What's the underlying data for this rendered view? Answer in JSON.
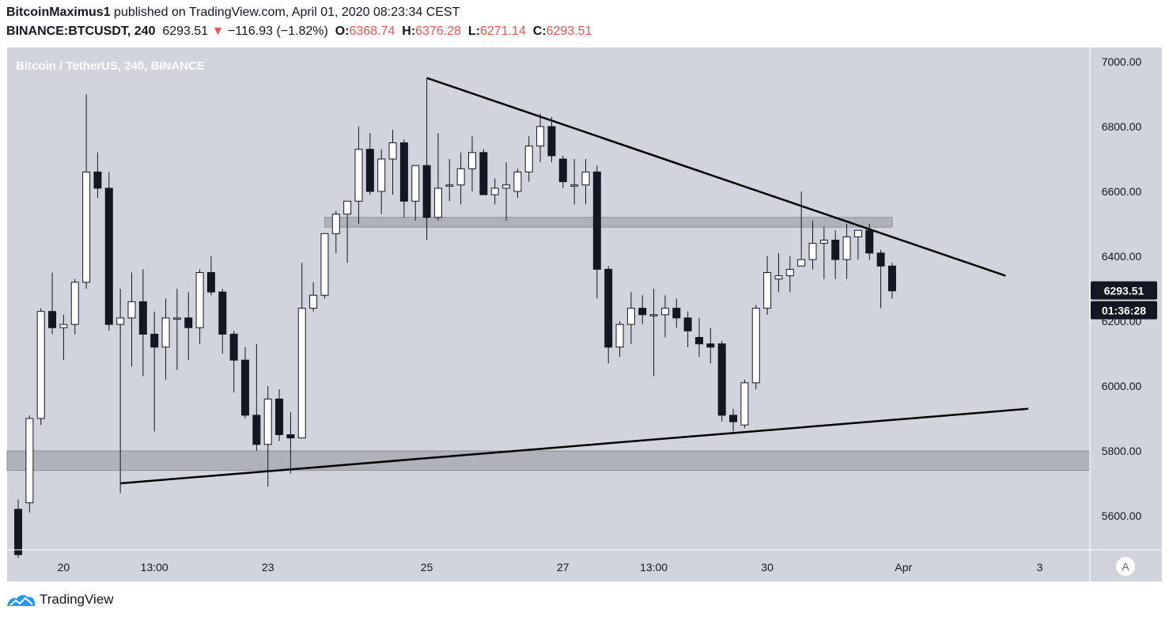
{
  "header": {
    "author": "BitcoinMaximus1",
    "published_text": " published on TradingView.com, April 01, 2020 08:23:34 CEST",
    "symbol": "BINANCE:BTCUSDT, 240",
    "last": "6293.51",
    "arrow": "▼",
    "change": "−116.93 (−1.82%)",
    "o_label": "O:",
    "o_value": "6368.74",
    "h_label": "H:",
    "h_value": "6376.28",
    "l_label": "L:",
    "l_value": "6271.14",
    "c_label": "C:",
    "c_value": "6293.51"
  },
  "footer": {
    "brand": "TradingView",
    "logo_icon": "tradingview-logo-icon"
  },
  "colors": {
    "background": "#d1d4dc",
    "candle_up": "#ffffff",
    "candle_down": "#131722",
    "zone": "#a9abb3",
    "negative": "#ef5350"
  },
  "chart_data": {
    "type": "candlestick",
    "title": "Bitcoin / TetherUS, 240, BINANCE",
    "ylim": [
      5500,
      7050
    ],
    "y_ticks": [
      "7000.00",
      "6800.00",
      "6600.00",
      "6400.00",
      "6200.00",
      "6000.00",
      "5800.00",
      "5600.00"
    ],
    "x_ticks": [
      {
        "label": "20",
        "bar": 4
      },
      {
        "label": "13:00",
        "bar": 12
      },
      {
        "label": "23",
        "bar": 22
      },
      {
        "label": "25",
        "bar": 36
      },
      {
        "label": "27",
        "bar": 48
      },
      {
        "label": "13:00",
        "bar": 56
      },
      {
        "label": "30",
        "bar": 66
      },
      {
        "label": "Apr",
        "bar": 78
      },
      {
        "label": "3",
        "bar": 90
      }
    ],
    "price_tag": "6293.51",
    "countdown": "01:36:28",
    "scale_mode": "A",
    "candles": [
      [
        5620,
        5650,
        5470,
        5480
      ],
      [
        5640,
        5910,
        5610,
        5900
      ],
      [
        5900,
        6240,
        5880,
        6230
      ],
      [
        6230,
        6350,
        6160,
        6180
      ],
      [
        6180,
        6220,
        6080,
        6190
      ],
      [
        6190,
        6330,
        6160,
        6320
      ],
      [
        6320,
        6900,
        6300,
        6660
      ],
      [
        6660,
        6720,
        6580,
        6610
      ],
      [
        6610,
        6660,
        6170,
        6190
      ],
      [
        6190,
        6300,
        5670,
        6210
      ],
      [
        6210,
        6350,
        6060,
        6260
      ],
      [
        6260,
        6360,
        6030,
        6160
      ],
      [
        6160,
        6230,
        5860,
        6120
      ],
      [
        6120,
        6270,
        6020,
        6210
      ],
      [
        6210,
        6300,
        6050,
        6210
      ],
      [
        6210,
        6290,
        6080,
        6180
      ],
      [
        6180,
        6360,
        6130,
        6350
      ],
      [
        6350,
        6400,
        6280,
        6290
      ],
      [
        6290,
        6300,
        6100,
        6160
      ],
      [
        6160,
        6170,
        5980,
        6080
      ],
      [
        6080,
        6120,
        5900,
        5910
      ],
      [
        5910,
        6130,
        5800,
        5820
      ],
      [
        5820,
        6000,
        5690,
        5960
      ],
      [
        5960,
        5990,
        5830,
        5850
      ],
      [
        5850,
        5920,
        5730,
        5840
      ],
      [
        5840,
        6380,
        5840,
        6240
      ],
      [
        6240,
        6320,
        6230,
        6280
      ],
      [
        6280,
        6470,
        6270,
        6470
      ],
      [
        6470,
        6540,
        6410,
        6530
      ],
      [
        6530,
        6570,
        6380,
        6570
      ],
      [
        6570,
        6800,
        6500,
        6730
      ],
      [
        6730,
        6780,
        6590,
        6600
      ],
      [
        6600,
        6730,
        6530,
        6700
      ],
      [
        6700,
        6790,
        6590,
        6750
      ],
      [
        6750,
        6760,
        6520,
        6570
      ],
      [
        6570,
        6680,
        6510,
        6680
      ],
      [
        6680,
        6950,
        6450,
        6520
      ],
      [
        6520,
        6780,
        6510,
        6610
      ],
      [
        6620,
        6700,
        6570,
        6620
      ],
      [
        6620,
        6720,
        6560,
        6670
      ],
      [
        6670,
        6770,
        6600,
        6720
      ],
      [
        6720,
        6730,
        6590,
        6590
      ],
      [
        6590,
        6640,
        6560,
        6610
      ],
      [
        6610,
        6690,
        6510,
        6620
      ],
      [
        6600,
        6670,
        6580,
        6660
      ],
      [
        6660,
        6770,
        6630,
        6740
      ],
      [
        6740,
        6840,
        6690,
        6800
      ],
      [
        6800,
        6830,
        6690,
        6710
      ],
      [
        6700,
        6710,
        6610,
        6630
      ],
      [
        6620,
        6700,
        6560,
        6620
      ],
      [
        6620,
        6700,
        6560,
        6660
      ],
      [
        6660,
        6680,
        6270,
        6360
      ],
      [
        6360,
        6370,
        6070,
        6120
      ],
      [
        6120,
        6200,
        6090,
        6190
      ],
      [
        6190,
        6290,
        6130,
        6240
      ],
      [
        6240,
        6280,
        6190,
        6220
      ],
      [
        6220,
        6300,
        6030,
        6220
      ],
      [
        6220,
        6280,
        6150,
        6240
      ],
      [
        6240,
        6270,
        6180,
        6210
      ],
      [
        6210,
        6230,
        6120,
        6170
      ],
      [
        6150,
        6210,
        6090,
        6130
      ],
      [
        6130,
        6180,
        6070,
        6120
      ],
      [
        6130,
        6140,
        5890,
        5910
      ],
      [
        5910,
        5930,
        5860,
        5890
      ],
      [
        5880,
        6020,
        5870,
        6010
      ],
      [
        6010,
        6250,
        5990,
        6240
      ],
      [
        6240,
        6400,
        6220,
        6350
      ],
      [
        6330,
        6410,
        6290,
        6340
      ],
      [
        6340,
        6400,
        6290,
        6360
      ],
      [
        6370,
        6600,
        6370,
        6390
      ],
      [
        6390,
        6510,
        6360,
        6440
      ],
      [
        6440,
        6490,
        6330,
        6450
      ],
      [
        6450,
        6480,
        6330,
        6390
      ],
      [
        6390,
        6500,
        6330,
        6460
      ],
      [
        6460,
        6480,
        6390,
        6480
      ],
      [
        6480,
        6500,
        6390,
        6410
      ],
      [
        6410,
        6420,
        6240,
        6370
      ],
      [
        6370,
        6380,
        6270,
        6293.51
      ]
    ],
    "zones": [
      {
        "from": 6490,
        "to": 6520,
        "start_bar": 27,
        "end_bar": 77
      },
      {
        "from": 5740,
        "to": 5800,
        "start_bar": -3,
        "end_bar": 97
      }
    ],
    "trendlines": [
      {
        "from": [
          36,
          6950
        ],
        "to": [
          87,
          6340
        ]
      },
      {
        "from": [
          9,
          5700
        ],
        "to": [
          89,
          5930
        ]
      }
    ]
  }
}
